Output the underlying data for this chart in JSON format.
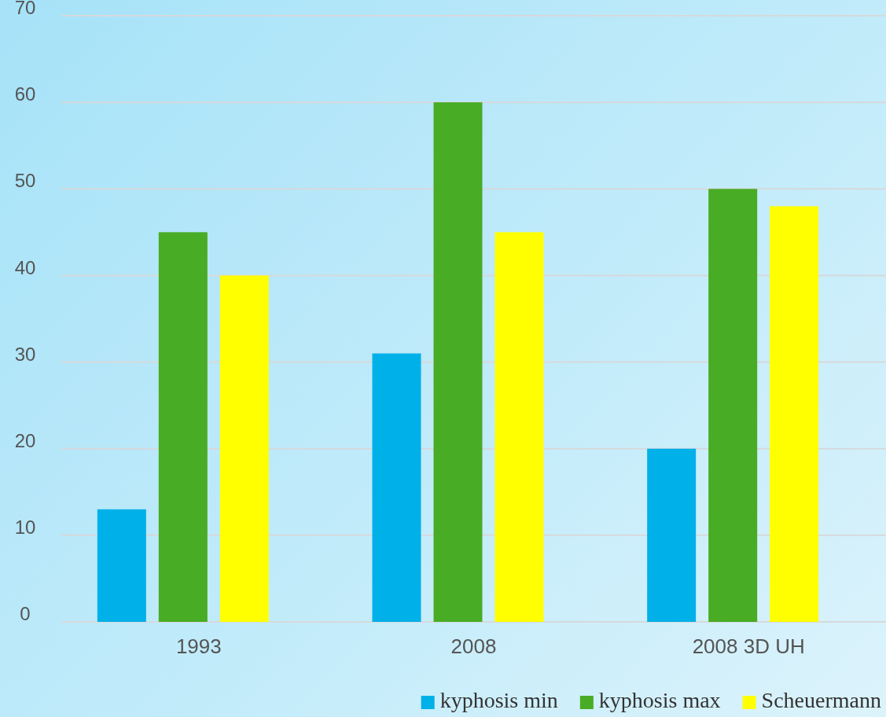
{
  "chart_data": {
    "type": "bar",
    "categories": [
      "1993",
      "2008",
      "2008 3D UH"
    ],
    "series": [
      {
        "name": "kyphosis min",
        "color": "#00b0e8",
        "values": [
          13,
          31,
          20
        ]
      },
      {
        "name": "kyphosis max",
        "color": "#48ac24",
        "values": [
          45,
          60,
          50
        ]
      },
      {
        "name": "Scheuermann",
        "color": "#ffff00",
        "values": [
          40,
          45,
          48
        ]
      }
    ],
    "ylim": [
      0,
      70
    ],
    "yticks": [
      0,
      10,
      20,
      30,
      40,
      50,
      60,
      70
    ],
    "grid": "y",
    "legend": "bottom right"
  }
}
